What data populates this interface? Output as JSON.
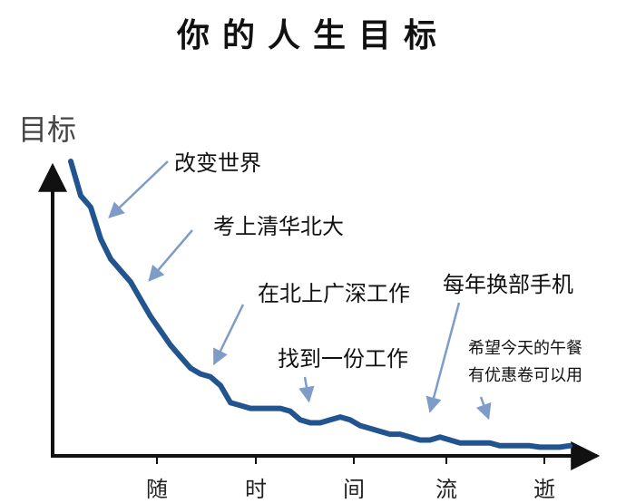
{
  "chart_data": {
    "type": "line",
    "title": "你的人生目标",
    "ylabel": "目标",
    "xlabel": "",
    "x_ticks": [
      "随",
      "时",
      "间",
      "流",
      "逝"
    ],
    "x": [
      0,
      2,
      4,
      6,
      8,
      10,
      12,
      14,
      16,
      18,
      20,
      22,
      24,
      26,
      28,
      30,
      32,
      34,
      36,
      38,
      40,
      42,
      44,
      46,
      48,
      50,
      52,
      54,
      56,
      58,
      60,
      62,
      64,
      66,
      68,
      70,
      72,
      74,
      76,
      78,
      80,
      82,
      84,
      86,
      88,
      90,
      92,
      94,
      96,
      98,
      100
    ],
    "series": [
      {
        "values": [
          100,
          88,
          84,
          73,
          66,
          62,
          58,
          52,
          46,
          41,
          36,
          32,
          28,
          26,
          25,
          22,
          16,
          15,
          14,
          14,
          14,
          14,
          13,
          10,
          9,
          9,
          10,
          11,
          10,
          8,
          7,
          6,
          5,
          5,
          4,
          3,
          3,
          4,
          3,
          2,
          2,
          2,
          2,
          1,
          1,
          1,
          1,
          0.5,
          0.5,
          0.5,
          1
        ]
      }
    ],
    "xlim": [
      0,
      100
    ],
    "ylim": [
      0,
      100
    ],
    "grid": false,
    "annotations": [
      {
        "text": "改变世界",
        "x": 7,
        "y": 78
      },
      {
        "text": "考上清华北大",
        "x": 15,
        "y": 56
      },
      {
        "text": "在北上广深工作",
        "x": 28,
        "y": 27
      },
      {
        "text": "找到一份工作",
        "x": 47,
        "y": 14
      },
      {
        "text": "每年换部手机",
        "x": 72,
        "y": 11
      },
      {
        "text": "希望今天的午餐",
        "x": 83,
        "y": 8
      },
      {
        "text": "有优惠卷可以用",
        "x": 83,
        "y": 8
      }
    ]
  },
  "colors": {
    "line": "#22548f",
    "axis": "#111111",
    "arrow": "#7f9cc8"
  }
}
